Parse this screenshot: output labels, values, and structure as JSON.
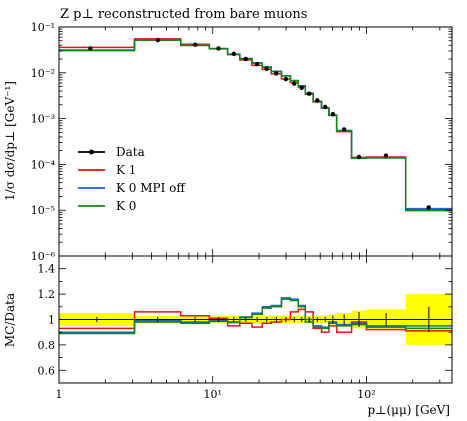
{
  "chart_data": [
    {
      "type": "line",
      "title": "Z p⊥ reconstructed from bare muons",
      "xlabel": "",
      "ylabel": "1/σ dσ/dp⊥ [GeV⁻¹]",
      "xscale": "log",
      "yscale": "log",
      "xlim": [
        1,
        360
      ],
      "ylim": [
        1e-06,
        0.1
      ],
      "x_ticks": [
        {
          "value": 1,
          "label": "1"
        },
        {
          "value": 10,
          "label": "10¹"
        },
        {
          "value": 100,
          "label": "10²"
        }
      ],
      "y_ticks": [
        {
          "value": 0.1,
          "label": "10⁻¹"
        },
        {
          "value": 0.01,
          "label": "10⁻²"
        },
        {
          "value": 0.001,
          "label": "10⁻³"
        },
        {
          "value": 0.0001,
          "label": "10⁻⁴"
        },
        {
          "value": 1e-05,
          "label": "10⁻⁵"
        },
        {
          "value": 1e-06,
          "label": "10⁻⁶"
        }
      ],
      "legend_position": "left",
      "bin_edges": [
        1,
        3.1,
        6.2,
        9.5,
        12.5,
        15,
        18,
        21,
        24,
        28,
        32,
        36,
        40,
        45,
        51,
        57,
        64,
        80,
        100,
        180,
        360
      ],
      "data": {
        "name": "Data",
        "color": "#000000",
        "x": [
          1.6,
          4.4,
          7.7,
          10.9,
          13.7,
          16.4,
          19.4,
          22.4,
          25.9,
          29.9,
          33.9,
          37.9,
          42.4,
          47.9,
          53.9,
          60.5,
          71.6,
          89.4,
          134,
          254
        ],
        "y": [
          0.034,
          0.052,
          0.041,
          0.034,
          0.026,
          0.02,
          0.0155,
          0.0123,
          0.0097,
          0.0073,
          0.0058,
          0.0047,
          0.0035,
          0.0025,
          0.0018,
          0.00125,
          0.00058,
          0.000145,
          0.000155,
          1.15e-05
        ]
      },
      "series": [
        {
          "name": "K 1",
          "color": "#ee1111",
          "values": [
            0.036,
            0.055,
            0.042,
            0.034,
            0.025,
            0.019,
            0.0145,
            0.0119,
            0.0095,
            0.0073,
            0.0061,
            0.0049,
            0.0034,
            0.0023,
            0.0017,
            0.0012,
            0.00052,
            0.000142,
            0.000145,
            1.05e-05
          ]
        },
        {
          "name": "K 0 MPI off",
          "color": "#1f5fe0",
          "values": [
            0.0315,
            0.052,
            0.04,
            0.0335,
            0.0255,
            0.0205,
            0.0165,
            0.0135,
            0.0108,
            0.0086,
            0.0068,
            0.0052,
            0.0036,
            0.0024,
            0.0017,
            0.00118,
            0.00055,
            0.000137,
            0.00014,
            1.08e-05
          ]
        },
        {
          "name": "K 0",
          "color": "#118811",
          "values": [
            0.0305,
            0.0515,
            0.0395,
            0.0333,
            0.0253,
            0.0203,
            0.0163,
            0.0133,
            0.0106,
            0.0085,
            0.0067,
            0.0051,
            0.0035,
            0.0024,
            0.00168,
            0.00117,
            0.00054,
            0.000135,
            0.000138,
            9.8e-06
          ]
        }
      ]
    },
    {
      "type": "line",
      "title": "",
      "xlabel": "p⊥(μμ) [GeV]",
      "ylabel": "MC/Data",
      "xscale": "log",
      "xlim": [
        1,
        360
      ],
      "ylim": [
        0.5,
        1.5
      ],
      "x_ticks": [
        {
          "value": 1,
          "label": "1"
        },
        {
          "value": 10,
          "label": "10¹"
        },
        {
          "value": 100,
          "label": "10²"
        }
      ],
      "y_ticks": [
        {
          "value": 0.6,
          "label": "0.6"
        },
        {
          "value": 0.8,
          "label": "0.8"
        },
        {
          "value": 1.0,
          "label": "1"
        },
        {
          "value": 1.2,
          "label": "1.2"
        },
        {
          "value": 1.4,
          "label": "1.4"
        }
      ],
      "bin_edges": [
        1,
        3.1,
        6.2,
        9.5,
        12.5,
        15,
        18,
        21,
        24,
        28,
        32,
        36,
        40,
        45,
        51,
        57,
        64,
        80,
        100,
        180,
        360
      ],
      "band": {
        "name": "Data uncertainty",
        "color": "#ffff00",
        "half_width": [
          0.05,
          0.03,
          0.03,
          0.03,
          0.03,
          0.03,
          0.03,
          0.03,
          0.03,
          0.03,
          0.03,
          0.03,
          0.03,
          0.03,
          0.03,
          0.04,
          0.05,
          0.07,
          0.08,
          0.2
        ]
      },
      "series": [
        {
          "name": "K 1",
          "color": "#ee1111",
          "values": [
            0.93,
            1.06,
            1.03,
            1.01,
            0.95,
            0.97,
            0.94,
            0.97,
            0.98,
            1.0,
            1.06,
            1.08,
            1.06,
            0.93,
            0.9,
            0.95,
            0.9,
            0.98,
            0.92,
            0.91
          ]
        },
        {
          "name": "K 0 MPI off",
          "color": "#1f5fe0",
          "values": [
            0.9,
            0.99,
            0.98,
            0.99,
            0.98,
            1.02,
            1.05,
            1.1,
            1.11,
            1.17,
            1.16,
            1.11,
            1.0,
            0.95,
            0.94,
            0.98,
            0.96,
            0.97,
            0.95,
            0.95
          ]
        },
        {
          "name": "K 0",
          "color": "#118811",
          "values": [
            0.89,
            0.98,
            0.97,
            0.985,
            0.975,
            1.015,
            1.04,
            1.09,
            1.1,
            1.16,
            1.15,
            1.1,
            0.98,
            0.94,
            0.93,
            0.97,
            0.95,
            0.96,
            0.94,
            0.93
          ]
        }
      ],
      "data_errors": [
        0.02,
        0.02,
        0.02,
        0.02,
        0.02,
        0.02,
        0.02,
        0.02,
        0.02,
        0.02,
        0.02,
        0.02,
        0.02,
        0.02,
        0.02,
        0.03,
        0.04,
        0.06,
        0.05,
        0.1
      ]
    }
  ]
}
